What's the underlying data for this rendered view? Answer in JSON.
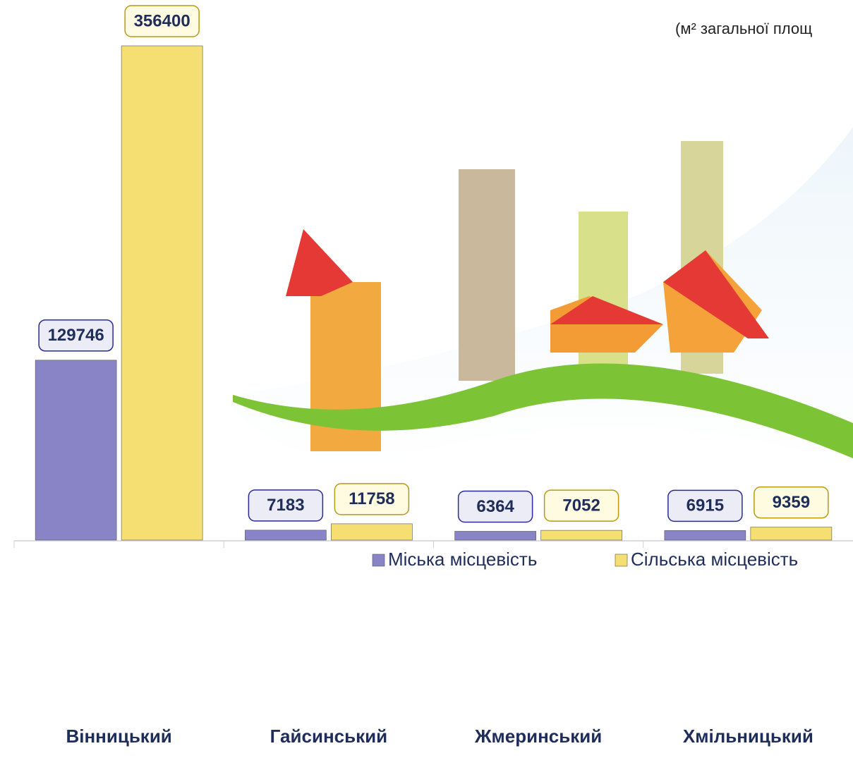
{
  "chart_data": {
    "type": "bar",
    "note": "(м² загальної площ",
    "categories": [
      "Вінницький",
      "Гайсинський",
      "Жмеринський",
      "Хмільницький"
    ],
    "series": [
      {
        "name": "Міська місцевість",
        "color": "#8884c6",
        "values": [
          129746,
          7183,
          6364,
          6915
        ]
      },
      {
        "name": "Сільська місцевість",
        "color": "#f5df72",
        "values": [
          356400,
          11758,
          7052,
          9359
        ]
      }
    ],
    "legend": "right"
  }
}
